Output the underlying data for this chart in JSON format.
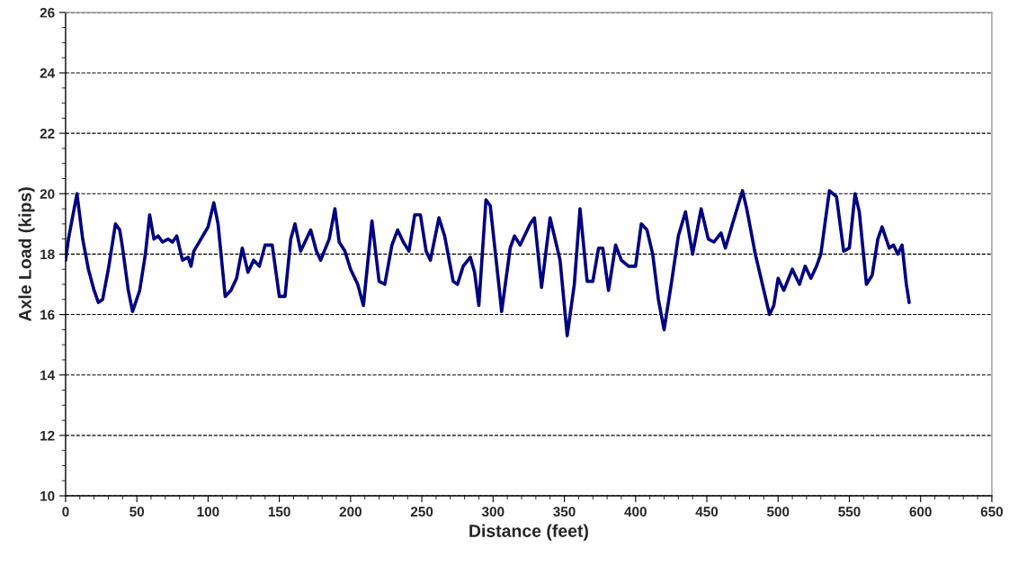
{
  "chart_data": {
    "type": "line",
    "xlabel": "Distance (feet)",
    "ylabel": "Axle Load (kips)",
    "xlim": [
      0,
      650
    ],
    "xticks": [
      0,
      50,
      100,
      150,
      200,
      250,
      300,
      350,
      400,
      450,
      500,
      550,
      600,
      650
    ],
    "ylim": [
      10,
      26
    ],
    "yticks": [
      10,
      12,
      14,
      16,
      18,
      20,
      22,
      24,
      26
    ],
    "grid": "y",
    "line_style": "solid",
    "marker": "none",
    "series": [
      {
        "color": "#000080",
        "x": [
          0,
          2,
          8,
          12,
          16,
          20,
          23,
          26,
          30,
          35,
          38,
          40,
          44,
          47,
          52,
          56,
          59,
          62,
          65,
          68,
          72,
          75,
          78,
          82,
          86,
          88,
          90,
          95,
          100,
          104,
          107,
          112,
          116,
          120,
          124,
          128,
          132,
          136,
          140,
          145,
          150,
          154,
          158,
          161,
          165,
          170,
          172,
          176,
          179,
          185,
          189,
          192,
          196,
          200,
          205,
          209,
          215,
          220,
          224,
          229,
          233,
          237,
          241,
          245,
          249,
          253,
          256,
          262,
          266,
          272,
          275,
          279,
          284,
          287,
          290,
          295,
          298,
          304,
          306,
          312,
          315,
          319,
          326,
          329,
          334,
          340,
          343,
          347,
          352,
          357,
          361,
          366,
          370,
          374,
          377,
          381,
          386,
          390,
          395,
          400,
          404,
          408,
          412,
          416,
          420,
          425,
          430,
          435,
          440,
          446,
          451,
          455,
          460,
          463,
          468,
          475,
          478,
          484,
          488,
          494,
          497,
          500,
          504,
          510,
          512,
          515,
          519,
          523,
          527,
          530,
          536,
          541,
          546,
          550,
          554,
          557,
          562,
          566,
          570,
          573,
          578,
          581,
          584,
          587,
          590,
          592
        ],
        "values": [
          17.8,
          18.5,
          20.0,
          18.5,
          17.5,
          16.8,
          16.4,
          16.5,
          17.5,
          19.0,
          18.8,
          18.2,
          16.8,
          16.1,
          16.8,
          18.0,
          19.3,
          18.5,
          18.6,
          18.4,
          18.5,
          18.4,
          18.6,
          17.8,
          17.9,
          17.6,
          18.1,
          18.5,
          18.9,
          19.7,
          19.0,
          16.6,
          16.8,
          17.2,
          18.2,
          17.4,
          17.8,
          17.6,
          18.3,
          18.3,
          16.6,
          16.6,
          18.5,
          19.0,
          18.1,
          18.6,
          18.8,
          18.1,
          17.8,
          18.5,
          19.5,
          18.4,
          18.1,
          17.5,
          17.0,
          16.3,
          19.1,
          17.1,
          17.0,
          18.3,
          18.8,
          18.4,
          18.1,
          19.3,
          19.3,
          18.1,
          17.8,
          19.2,
          18.6,
          17.1,
          17.0,
          17.6,
          17.9,
          17.4,
          16.3,
          19.8,
          19.6,
          17.0,
          16.1,
          18.2,
          18.6,
          18.3,
          19.0,
          19.2,
          16.9,
          19.2,
          18.6,
          17.8,
          15.3,
          17.0,
          19.5,
          17.1,
          17.1,
          18.2,
          18.2,
          16.8,
          18.3,
          17.8,
          17.6,
          17.6,
          19.0,
          18.8,
          18.0,
          16.5,
          15.5,
          17.0,
          18.6,
          19.4,
          18.0,
          19.5,
          18.5,
          18.4,
          18.7,
          18.2,
          19.0,
          20.1,
          19.5,
          18.0,
          17.2,
          16.0,
          16.3,
          17.2,
          16.8,
          17.5,
          17.3,
          17.0,
          17.6,
          17.2,
          17.6,
          18.0,
          20.1,
          19.9,
          18.1,
          18.2,
          20.0,
          19.4,
          17.0,
          17.3,
          18.5,
          18.9,
          18.2,
          18.3,
          18.0,
          18.3,
          17.0,
          16.4
        ]
      }
    ]
  }
}
